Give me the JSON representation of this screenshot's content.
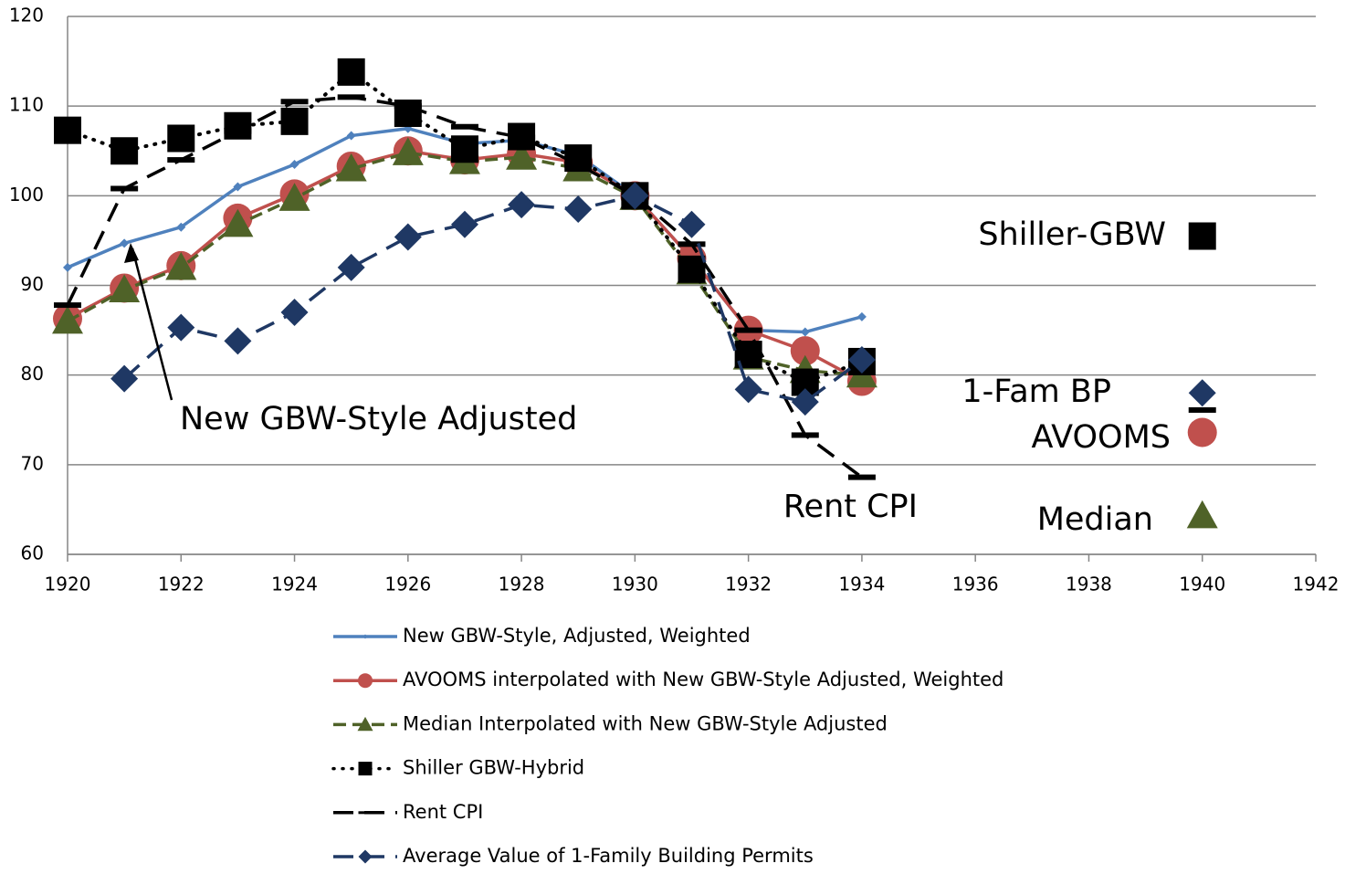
{
  "chart_data": {
    "type": "line",
    "x": [
      1920,
      1921,
      1922,
      1923,
      1924,
      1925,
      1926,
      1927,
      1928,
      1929,
      1930,
      1931,
      1932,
      1933,
      1934,
      1935,
      1936,
      1937,
      1938,
      1939,
      1940
    ],
    "series": [
      {
        "name": "New GBW-Style, Adjusted, Weighted",
        "color": "#4f81bd",
        "marker": "diamond-small",
        "dash": "solid",
        "values": [
          92,
          94.7,
          96.5,
          101,
          103.5,
          106.7,
          107.5,
          105.8,
          106.2,
          104.5,
          100,
          93,
          85,
          84.8,
          86.5,
          null,
          null,
          null,
          null,
          null,
          null
        ]
      },
      {
        "name": "AVOOMS interpolated with New GBW-Style Adjusted, Weighted",
        "color": "#c0504d",
        "marker": "circle",
        "dash": "solid",
        "values": [
          86.3,
          89.7,
          92.2,
          97.5,
          100.2,
          103.3,
          105,
          104,
          104.7,
          103.7,
          100,
          93,
          85,
          82.7,
          79.3,
          null,
          null,
          null,
          null,
          null,
          73.6
        ]
      },
      {
        "name": "Median Interpolated with New GBW-Style Adjusted",
        "color": "#4f6228",
        "marker": "triangle",
        "dash": "dashed",
        "values": [
          86,
          89.5,
          92,
          96.8,
          99.7,
          103,
          104.8,
          103.8,
          104.3,
          103,
          99.8,
          91.5,
          82,
          80.5,
          80,
          null,
          null,
          null,
          null,
          null,
          64.3
        ]
      },
      {
        "name": "Shiller GBW-Hybrid",
        "color": "#000000",
        "marker": "square",
        "dash": "dotted",
        "values": [
          107.3,
          105,
          106.4,
          107.8,
          108.3,
          113.8,
          109.2,
          105.2,
          106.6,
          104.2,
          100,
          91.8,
          82.3,
          79.2,
          81.5,
          null,
          null,
          null,
          null,
          null,
          95.5
        ]
      },
      {
        "name": "Rent CPI",
        "color": "#000000",
        "marker": "dash",
        "dash": "longdash",
        "values": [
          87.8,
          100.8,
          104,
          107.2,
          110.5,
          111,
          110,
          107.7,
          106.5,
          103.5,
          100,
          94.6,
          85,
          73.3,
          68.6,
          null,
          null,
          null,
          null,
          null,
          76.1
        ]
      },
      {
        "name": "Average Value of 1-Family Building Permits",
        "color": "#1f3864",
        "marker": "diamond",
        "dash": "longdash",
        "values": [
          null,
          79.6,
          85.3,
          83.8,
          87,
          92,
          95.4,
          96.8,
          99,
          98.5,
          100,
          96.8,
          78.4,
          77,
          81.7,
          null,
          null,
          null,
          null,
          null,
          78
        ]
      }
    ],
    "xlim": [
      1920,
      1942
    ],
    "xticks": [
      1920,
      1922,
      1924,
      1926,
      1928,
      1930,
      1932,
      1934,
      1936,
      1938,
      1940,
      1942
    ],
    "ylim": [
      60,
      120
    ],
    "yticks": [
      60,
      70,
      80,
      90,
      100,
      110,
      120
    ],
    "grid": true,
    "legend": "bottom",
    "annotations": [
      "New GBW-Style Adjusted",
      "Shiller-GBW",
      "1-Fam BP",
      "AVOOMS",
      "Rent CPI",
      "Median"
    ]
  }
}
